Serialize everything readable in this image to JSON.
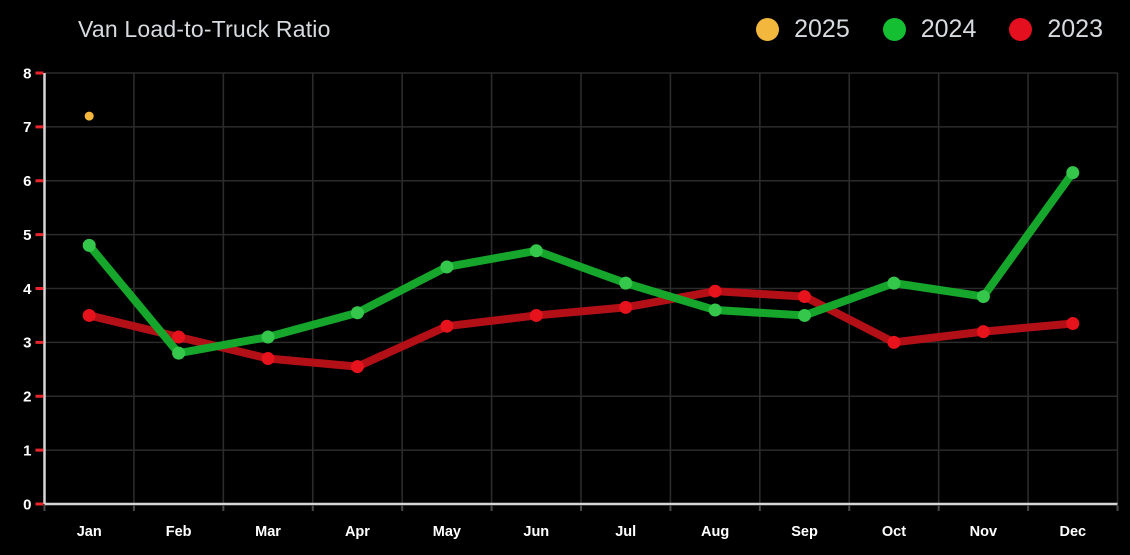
{
  "header": {
    "title": "Van Load-to-Truck Ratio"
  },
  "legend": [
    {
      "label": "2025",
      "color": "#f3b73e"
    },
    {
      "label": "2024",
      "color": "#14bf32"
    },
    {
      "label": "2023",
      "color": "#e41020"
    }
  ],
  "chart_data": {
    "type": "line",
    "title": "Van Load-to-Truck Ratio",
    "categories": [
      "Jan",
      "Feb",
      "Mar",
      "Apr",
      "May",
      "Jun",
      "Jul",
      "Aug",
      "Sep",
      "Oct",
      "Nov",
      "Dec"
    ],
    "series": [
      {
        "name": "2025",
        "line_color": "#f3b73e",
        "point_color": "#f3b73e",
        "values": [
          7.2,
          null,
          null,
          null,
          null,
          null,
          null,
          null,
          null,
          null,
          null,
          null
        ]
      },
      {
        "name": "2024",
        "line_color": "#16a62b",
        "point_color": "#35c74b",
        "values": [
          4.8,
          2.8,
          3.1,
          3.55,
          4.4,
          4.7,
          4.1,
          3.6,
          3.5,
          4.1,
          3.85,
          6.15
        ]
      },
      {
        "name": "2023",
        "line_color": "#b21016",
        "point_color": "#e6121c",
        "values": [
          3.5,
          3.1,
          2.7,
          2.55,
          3.3,
          3.5,
          3.65,
          3.95,
          3.85,
          3.0,
          3.2,
          3.35
        ]
      }
    ],
    "xlabel": "",
    "ylabel": "",
    "ylim": [
      0,
      8
    ],
    "yticks": [
      0,
      1,
      2,
      3,
      4,
      5,
      6,
      7,
      8
    ],
    "grid": true,
    "legend_position": "top-right",
    "draw_order": [
      "2023",
      "2024",
      "2025"
    ]
  },
  "style": {
    "background": "#000000",
    "grid_color": "#2b2b2b",
    "axis_color": "#d6d6d6",
    "y_tick_color": "#e8262c",
    "x_tick_color": "#4a4a4a",
    "tick_label_color": "#ffffff",
    "title_color": "#d7dbe0",
    "legend_text_color": "#d7dbe0"
  }
}
